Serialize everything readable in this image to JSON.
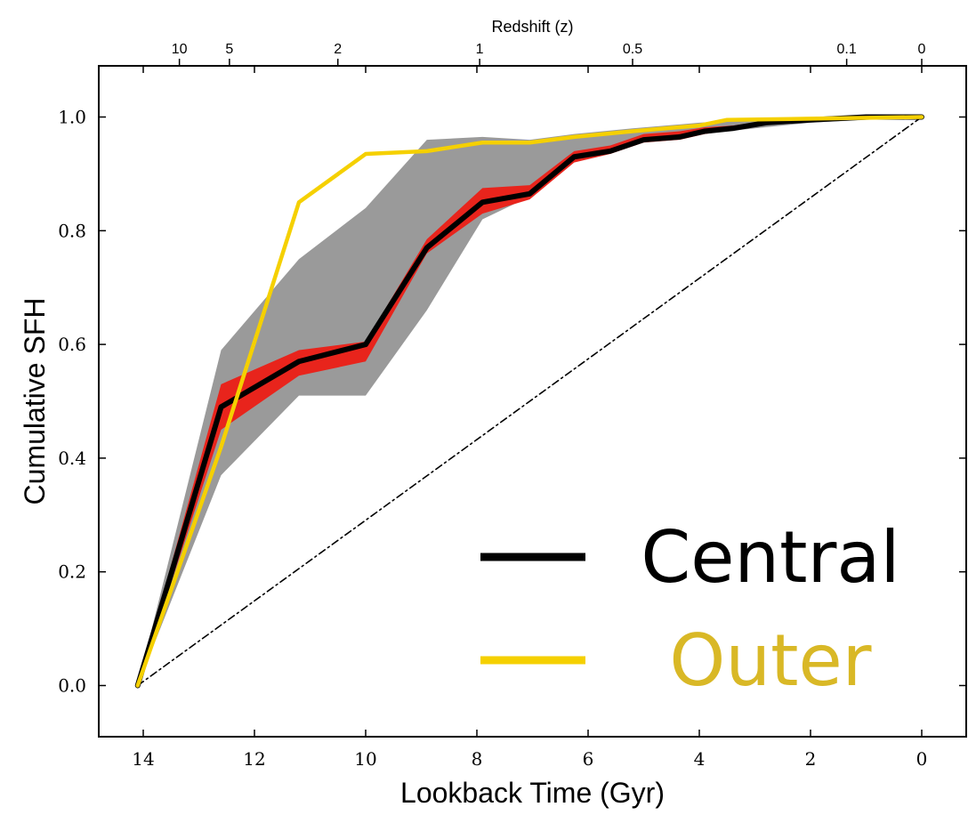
{
  "chart_data": {
    "type": "line",
    "xlabel": "Lookback Time (Gyr)",
    "ylabel": "Cumulative SFH",
    "top_axis_label": "Redshift (z)",
    "xlim": [
      14.8,
      -0.8
    ],
    "ylim": [
      -0.09,
      1.09
    ],
    "x_ticks": [
      14,
      12,
      10,
      8,
      6,
      4,
      2,
      0
    ],
    "x_tick_labels": [
      "14",
      "12",
      "10",
      "8",
      "6",
      "4",
      "2",
      "0"
    ],
    "y_ticks": [
      0.0,
      0.2,
      0.4,
      0.6,
      0.8,
      1.0
    ],
    "y_tick_labels": [
      "0.0",
      "0.2",
      "0.4",
      "0.6",
      "0.8",
      "1.0"
    ],
    "top_ticks": [
      {
        "label": "10",
        "lookback": 13.35
      },
      {
        "label": "5",
        "lookback": 12.45
      },
      {
        "label": "2",
        "lookback": 10.5
      },
      {
        "label": "1",
        "lookback": 7.95
      },
      {
        "label": "0.5",
        "lookback": 5.2
      },
      {
        "label": "0.1",
        "lookback": 1.35
      },
      {
        "label": "0",
        "lookback": 0.0
      }
    ],
    "grid": false,
    "legend_position": "bottom-right",
    "series": [
      {
        "name": "Central",
        "color": "#000000",
        "x": [
          14.1,
          12.6,
          11.2,
          10.0,
          8.9,
          7.9,
          7.05,
          6.25,
          5.6,
          5.0,
          4.35,
          3.9,
          3.4,
          2.8,
          2.0,
          1.0,
          0.0
        ],
        "y": [
          0.0,
          0.49,
          0.57,
          0.6,
          0.77,
          0.85,
          0.865,
          0.93,
          0.94,
          0.96,
          0.965,
          0.975,
          0.98,
          0.99,
          0.995,
          1.0,
          1.0
        ]
      },
      {
        "name": "Outer",
        "color": "#f5d000",
        "x": [
          14.1,
          12.6,
          11.2,
          10.0,
          8.9,
          7.9,
          7.05,
          6.25,
          5.2,
          4.0,
          3.5,
          2.0,
          0.0
        ],
        "y": [
          0.0,
          0.42,
          0.85,
          0.935,
          0.94,
          0.955,
          0.955,
          0.965,
          0.975,
          0.985,
          0.995,
          0.997,
          1.0
        ]
      },
      {
        "name": "",
        "style": "dash-dot",
        "color": "#000000",
        "x": [
          14.1,
          0.0
        ],
        "y": [
          0.0,
          1.0
        ]
      }
    ],
    "bands": [
      {
        "color": "#9a9a9a",
        "x": [
          14.1,
          12.6,
          11.2,
          10.0,
          8.9,
          7.9,
          7.05,
          6.25,
          5.2,
          4.0,
          2.0,
          0.0
        ],
        "lower": [
          0.0,
          0.37,
          0.51,
          0.51,
          0.66,
          0.82,
          0.86,
          0.93,
          0.955,
          0.97,
          0.99,
          1.0
        ],
        "upper": [
          0.0,
          0.59,
          0.75,
          0.84,
          0.96,
          0.965,
          0.96,
          0.97,
          0.98,
          0.99,
          1.0,
          1.0
        ]
      },
      {
        "color": "#e8241c",
        "x": [
          14.1,
          12.6,
          11.2,
          10.0,
          8.9,
          7.9,
          7.05,
          6.25,
          5.6,
          5.0,
          4.35,
          3.9,
          3.4,
          2.8,
          2.0,
          1.0,
          0.0
        ],
        "lower": [
          0.0,
          0.45,
          0.545,
          0.57,
          0.76,
          0.83,
          0.855,
          0.92,
          0.935,
          0.955,
          0.96,
          0.97,
          0.977,
          0.988,
          0.994,
          0.999,
          1.0
        ],
        "upper": [
          0.0,
          0.53,
          0.59,
          0.605,
          0.785,
          0.875,
          0.88,
          0.94,
          0.95,
          0.97,
          0.975,
          0.982,
          0.985,
          0.993,
          0.997,
          1.0,
          1.0
        ]
      }
    ],
    "legend": [
      {
        "label": "Central",
        "color": "#000000",
        "text_color": "#000000"
      },
      {
        "label": "Outer",
        "color": "#f5d000",
        "text_color": "#d9b826"
      }
    ]
  }
}
